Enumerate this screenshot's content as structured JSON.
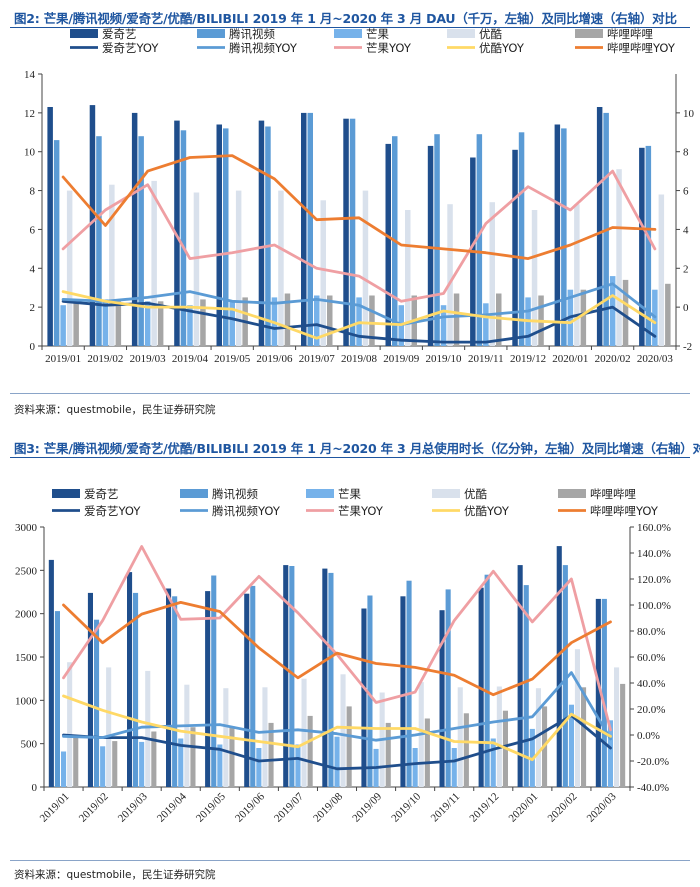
{
  "figure1": {
    "title": "图2: 芒果/腾讯视频/爱奇艺/优酷/BILIBILI 2019 年 1 月~2020 年 3 月 DAU（千万，左轴）及同比增速（右轴）对比",
    "source": "资料来源：questmobile，民生证券研究院",
    "chart_data": {
      "type": "bar",
      "categories": [
        "2019/01",
        "2019/02",
        "2019/03",
        "2019/04",
        "2019/05",
        "2019/06",
        "2019/07",
        "2019/08",
        "2019/09",
        "2019/10",
        "2019/11",
        "2019/12",
        "2020/01",
        "2020/02",
        "2020/03"
      ],
      "left_axis": {
        "min": 0,
        "max": 14,
        "ticks": [
          "0",
          "2",
          "4",
          "6",
          "8",
          "10",
          "12",
          "14"
        ]
      },
      "right_axis": {
        "min": -2,
        "max": 12,
        "ticks": [
          "-2",
          "0",
          "2",
          "4",
          "6",
          "8",
          "10"
        ]
      },
      "series": [
        {
          "name": "爱奇艺",
          "type": "bar",
          "color": "#1f4e8c",
          "values": [
            12.3,
            12.4,
            12.0,
            11.6,
            11.4,
            11.6,
            12.0,
            11.7,
            10.4,
            10.3,
            9.7,
            10.1,
            11.4,
            12.3,
            10.2
          ]
        },
        {
          "name": "腾讯视频",
          "type": "bar",
          "color": "#5b9bd5",
          "values": [
            10.6,
            10.8,
            10.8,
            11.1,
            11.2,
            11.3,
            12.0,
            11.7,
            10.8,
            10.9,
            10.9,
            11.0,
            11.2,
            12.0,
            10.3
          ]
        },
        {
          "name": "芒果",
          "type": "bar",
          "color": "#76b2ea",
          "values": [
            2.1,
            2.4,
            2.3,
            2.1,
            2.3,
            2.5,
            2.6,
            2.5,
            2.1,
            2.1,
            2.2,
            2.5,
            2.9,
            3.6,
            2.9
          ]
        },
        {
          "name": "优酷",
          "type": "bar",
          "color": "#d9e1ec",
          "values": [
            8.0,
            8.3,
            8.5,
            7.9,
            8.0,
            8.0,
            7.5,
            8.0,
            7.0,
            7.3,
            7.4,
            7.0,
            7.3,
            9.1,
            7.8
          ]
        },
        {
          "name": "哔哩哔哩",
          "type": "bar",
          "color": "#a6a6a6",
          "values": [
            2.3,
            2.3,
            2.3,
            2.4,
            2.5,
            2.7,
            2.6,
            2.6,
            2.6,
            2.7,
            2.7,
            2.6,
            2.9,
            3.4,
            3.2
          ]
        },
        {
          "name": "爱奇艺YOY",
          "type": "line",
          "axis": "right",
          "color": "#1f4e8c",
          "values": [
            0.3,
            0.1,
            0.2,
            -0.2,
            -0.6,
            -1.1,
            -0.9,
            -1.5,
            -1.7,
            -1.8,
            -1.8,
            -1.5,
            -0.5,
            0.0,
            -1.5
          ]
        },
        {
          "name": "腾讯视频YOY",
          "type": "line",
          "axis": "right",
          "color": "#5b9bd5",
          "values": [
            0.4,
            0.3,
            0.5,
            0.8,
            0.3,
            0.2,
            0.4,
            0.1,
            -0.9,
            -0.5,
            -0.4,
            -0.2,
            0.5,
            1.2,
            -0.5
          ]
        },
        {
          "name": "芒果YOY",
          "type": "line",
          "axis": "right",
          "color": "#ef9fa3",
          "values": [
            3.0,
            5.0,
            6.3,
            2.5,
            2.8,
            3.2,
            2.0,
            1.6,
            0.3,
            0.7,
            4.3,
            6.2,
            5.0,
            7.0,
            3.0
          ]
        },
        {
          "name": "优酷YOY",
          "type": "line",
          "axis": "right",
          "color": "#ffd966",
          "values": [
            0.8,
            0.3,
            0.0,
            0.0,
            -0.1,
            -0.8,
            -1.6,
            -0.8,
            -0.9,
            -0.2,
            -0.5,
            -0.7,
            -0.8,
            0.6,
            -0.8
          ]
        },
        {
          "name": "哔哩哔哩YOY",
          "type": "line",
          "axis": "right",
          "color": "#ed7d31",
          "values": [
            6.7,
            4.2,
            7.0,
            7.7,
            7.8,
            6.6,
            4.5,
            4.6,
            3.2,
            3.0,
            2.8,
            2.5,
            3.2,
            4.1,
            4.0
          ]
        }
      ]
    }
  },
  "figure2": {
    "title": "图3: 芒果/腾讯视频/爱奇艺/优酷/BILIBILI 2019 年 1 月~2020 年 3 月总使用时长（亿分钟，左轴）及同比增速（右轴）对比",
    "source": "资料来源：questmobile，民生证券研究院",
    "chart_data": {
      "type": "bar",
      "categories": [
        "2019/01",
        "2019/02",
        "2019/03",
        "2019/04",
        "2019/05",
        "2019/06",
        "2019/07",
        "2019/08",
        "2019/09",
        "2019/10",
        "2019/11",
        "2019/12",
        "2020/01",
        "2020/02",
        "2020/03"
      ],
      "left_axis": {
        "min": 0,
        "max": 3000,
        "ticks": [
          "0",
          "500",
          "1000",
          "1500",
          "2000",
          "2500",
          "3000"
        ]
      },
      "right_axis": {
        "min": -40,
        "max": 160,
        "ticks": [
          "-40.0%",
          "-20.0%",
          "0.0%",
          "20.0%",
          "40.0%",
          "60.0%",
          "80.0%",
          "100.0%",
          "120.0%",
          "140.0%",
          "160.0%"
        ]
      },
      "series": [
        {
          "name": "爱奇艺",
          "type": "bar",
          "color": "#1f4e8c",
          "values": [
            2620,
            2240,
            2480,
            2290,
            2260,
            2230,
            2560,
            2520,
            2060,
            2200,
            2040,
            2300,
            2560,
            2780,
            2170
          ]
        },
        {
          "name": "腾讯视频",
          "type": "bar",
          "color": "#5b9bd5",
          "values": [
            2030,
            1930,
            2240,
            2200,
            2440,
            2320,
            2550,
            2470,
            2210,
            2380,
            2280,
            2450,
            2330,
            2560,
            2170
          ]
        },
        {
          "name": "芒果",
          "type": "bar",
          "color": "#76b2ea",
          "values": [
            410,
            470,
            520,
            560,
            490,
            450,
            490,
            580,
            440,
            450,
            450,
            560,
            670,
            950,
            770
          ]
        },
        {
          "name": "优酷",
          "type": "bar",
          "color": "#d9e1ec",
          "values": [
            1440,
            1380,
            1340,
            1180,
            1140,
            1150,
            1250,
            1300,
            1090,
            1210,
            1150,
            1160,
            1140,
            1590,
            1380
          ]
        },
        {
          "name": "哔哩哔哩",
          "type": "bar",
          "color": "#a6a6a6",
          "values": [
            580,
            530,
            640,
            690,
            700,
            740,
            820,
            930,
            740,
            790,
            850,
            880,
            930,
            1150,
            1190
          ]
        },
        {
          "name": "爱奇艺YOY",
          "type": "line",
          "axis": "right",
          "color": "#1f4e8c",
          "values": [
            0,
            -2,
            -2,
            -8,
            -11,
            -20,
            -18,
            -26,
            -25,
            -22,
            -20,
            -11,
            -3,
            15,
            -10
          ]
        },
        {
          "name": "腾讯视频YOY",
          "type": "line",
          "axis": "right",
          "color": "#5b9bd5",
          "values": [
            -1,
            -2,
            6,
            7,
            8,
            2,
            4,
            1,
            -4,
            0,
            5,
            10,
            14,
            48,
            -3
          ]
        },
        {
          "name": "芒果YOY",
          "type": "line",
          "axis": "right",
          "color": "#ef9fa3",
          "values": [
            44,
            88,
            145,
            89,
            90,
            122,
            94,
            62,
            25,
            33,
            88,
            126,
            87,
            120,
            4
          ]
        },
        {
          "name": "优酷YOY",
          "type": "line",
          "axis": "right",
          "color": "#ffd966",
          "values": [
            30,
            19,
            10,
            3,
            -1,
            -5,
            -9,
            6,
            5,
            5,
            -5,
            -6,
            -19,
            16,
            -1
          ]
        },
        {
          "name": "哔哩哔哩YOY",
          "type": "line",
          "axis": "right",
          "color": "#ed7d31",
          "values": [
            100,
            71,
            93,
            102,
            95,
            67,
            44,
            63,
            55,
            52,
            46,
            31,
            43,
            71,
            87
          ]
        }
      ]
    }
  }
}
